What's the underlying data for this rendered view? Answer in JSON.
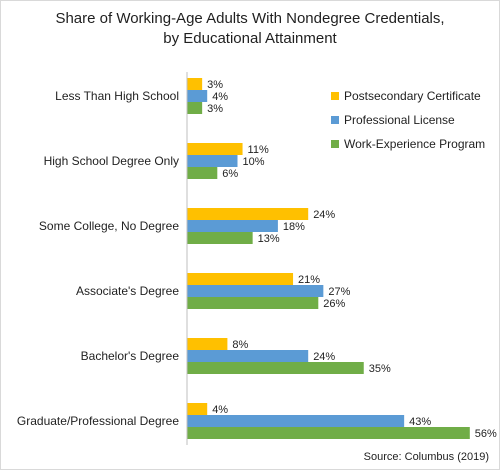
{
  "chart_data": {
    "type": "bar",
    "orientation": "horizontal",
    "title_line1": "Share of Working-Age Adults With Nondegree Credentials,",
    "title_line2": "by Educational Attainment",
    "categories": [
      "Less Than High School",
      "High School Degree Only",
      "Some College, No Degree",
      "Associate's Degree",
      "Bachelor's Degree",
      "Graduate/Professional Degree"
    ],
    "series": [
      {
        "name": "Postsecondary Certificate",
        "color": "#FFC000",
        "values": [
          3,
          11,
          24,
          21,
          8,
          4
        ]
      },
      {
        "name": "Professional License",
        "color": "#5B9BD5",
        "values": [
          4,
          10,
          18,
          27,
          24,
          43
        ]
      },
      {
        "name": "Work-Experience Program",
        "color": "#70AD47",
        "values": [
          3,
          6,
          13,
          26,
          35,
          56
        ]
      }
    ],
    "value_suffix": "%",
    "xlim": [
      0,
      60
    ],
    "legend_position": "top-right",
    "grid": false,
    "source": "Source: Columbus (2019)"
  }
}
